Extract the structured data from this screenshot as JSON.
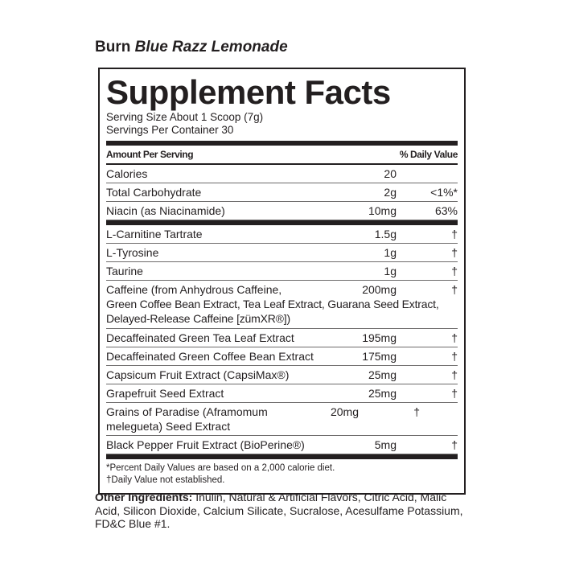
{
  "product": {
    "brand": "Burn",
    "flavor": "Blue Razz Lemonade"
  },
  "panel": {
    "title": "Supplement Facts",
    "serving_size": "Serving Size About 1 Scoop (7g)",
    "servings_per_container": "Servings Per Container 30",
    "header_amount": "Amount Per Serving",
    "header_dv": "% Daily Value",
    "group1": [
      {
        "name": "Calories",
        "amount": "20",
        "dv": ""
      },
      {
        "name": "Total Carbohydrate",
        "amount": "2g",
        "dv": "<1%*"
      },
      {
        "name": "Niacin (as Niacinamide)",
        "amount": "10mg",
        "dv": "63%"
      }
    ],
    "group2": [
      {
        "name": "L-Carnitine Tartrate",
        "amount": "1.5g",
        "dv": "†"
      },
      {
        "name": "L-Tyrosine",
        "amount": "1g",
        "dv": "†"
      },
      {
        "name": "Taurine",
        "amount": "1g",
        "dv": "†"
      },
      {
        "name": "Caffeine (from Anhydrous Caffeine,",
        "amount": "200mg",
        "dv": "†",
        "extra": "Green Coffee Bean Extract, Tea Leaf Extract, Guarana Seed Extract, Delayed-Release Caffeine [zümXR®])"
      },
      {
        "name": "Decaffeinated Green Tea Leaf Extract",
        "amount": "195mg",
        "dv": "†"
      },
      {
        "name": "Decaffeinated Green Coffee Bean Extract",
        "amount": "175mg",
        "dv": "†"
      },
      {
        "name": "Capsicum Fruit Extract (CapsiMax®)",
        "amount": "25mg",
        "dv": "†"
      },
      {
        "name": "Grapefruit Seed Extract",
        "amount": "25mg",
        "dv": "†"
      },
      {
        "name": "Grains of Paradise (Aframomum melegueta) Seed Extract",
        "amount": "20mg",
        "dv": "†"
      },
      {
        "name": "Black Pepper Fruit Extract (BioPerine®)",
        "amount": "5mg",
        "dv": "†"
      }
    ],
    "footnote1": "*Percent Daily Values are based on a 2,000 calorie diet.",
    "footnote2": "†Daily Value not established."
  },
  "other_ingredients": {
    "label": "Other Ingredients:",
    "text": " Inulin, Natural & Artificial Flavors, Citric Acid, Malic Acid, Silicon Dioxide, Calcium Silicate, Sucralose, Acesulfame Potassium, FD&C Blue #1."
  }
}
